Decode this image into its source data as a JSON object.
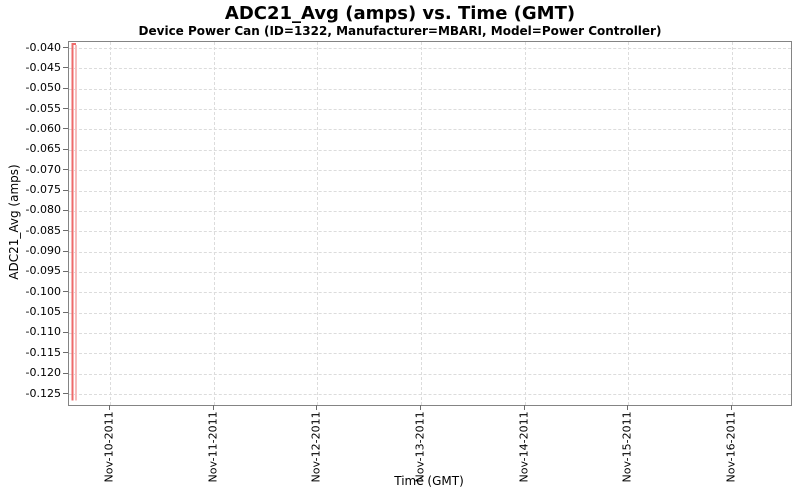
{
  "chart_data": {
    "type": "line",
    "title": "ADC21_Avg (amps) vs. Time (GMT)",
    "subtitle": "Device Power Can (ID=1322, Manufacturer=MBARI, Model=Power Controller)",
    "xlabel": "Time (GMT)",
    "ylabel": "ADC21_Avg (amps)",
    "x_ticks": [
      "Nov-10-2011",
      "Nov-11-2011",
      "Nov-12-2011",
      "Nov-13-2011",
      "Nov-14-2011",
      "Nov-15-2011",
      "Nov-16-2011"
    ],
    "y_ticks": [
      "-0.040",
      "-0.045",
      "-0.050",
      "-0.055",
      "-0.060",
      "-0.065",
      "-0.070",
      "-0.075",
      "-0.080",
      "-0.085",
      "-0.090",
      "-0.095",
      "-0.100",
      "-0.105",
      "-0.110",
      "-0.115",
      "-0.120",
      "-0.125"
    ],
    "ylim": [
      -0.1275,
      -0.0385
    ],
    "x_range_shown": [
      "Nov-09-2011 ~15:00 GMT",
      "Nov-16-2011 ~16:30 GMT"
    ],
    "grid": true,
    "legend": "none",
    "colors": {
      "background": "#ffffff",
      "plot_border": "#848484",
      "gridline": "#dcdcdc",
      "tick": "#6b6b6b",
      "text": "#000000",
      "series": "#ee6a6a",
      "series_light": "#f6bcbc"
    },
    "series": [
      {
        "name": "ADC21_Avg",
        "color": "#ee6a6a",
        "description": "All visible data forms a narrow vertical spike at the far left edge of the plot (~Nov-09-2011 15:00-16:00 GMT): the trace rises from about -0.1265 amps up to about -0.0390 amps and immediately drops back down to about -0.1265 amps; no data for the rest of the time range.",
        "points": [
          {
            "x": "Nov-09-2011 15:00",
            "y": -0.1265
          },
          {
            "x": "Nov-09-2011 15:30",
            "y": -0.039
          },
          {
            "x": "Nov-09-2011 16:00",
            "y": -0.1265
          }
        ]
      }
    ]
  }
}
